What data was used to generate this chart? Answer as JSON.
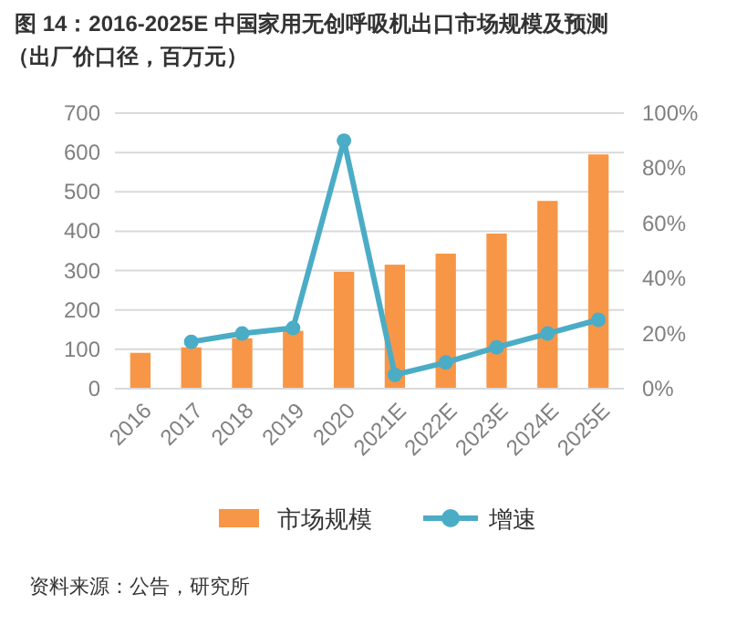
{
  "chart_data": {
    "type": "bar",
    "title": "图 14：2016-2025E 中国家用无创呼吸机出口市场规模及预测",
    "subtitle": "（出厂价口径，百万元）",
    "categories": [
      "2016",
      "2017",
      "2018",
      "2019",
      "2020",
      "2021E",
      "2022E",
      "2023E",
      "2024E",
      "2025E"
    ],
    "series": [
      {
        "name": "市场规模",
        "color": "#f79646",
        "values": [
          91,
          105,
          128,
          147,
          297,
          315,
          343,
          394,
          477,
          595
        ]
      },
      {
        "name": "增速",
        "type": "line",
        "axis": "y2",
        "color": "#4bacc6",
        "marker": "circle",
        "values": [
          null,
          17,
          20,
          22,
          90,
          5,
          9.5,
          15,
          20,
          25
        ]
      }
    ],
    "ylim": [
      0,
      700
    ],
    "yticks": [
      0,
      100,
      200,
      300,
      400,
      500,
      600,
      700
    ],
    "y2lim": [
      0,
      100
    ],
    "y2ticks": [
      {
        "value": 0,
        "label": "0%"
      },
      {
        "value": 20,
        "label": "20%"
      },
      {
        "value": 40,
        "label": "40%"
      },
      {
        "value": 60,
        "label": "60%"
      },
      {
        "value": 80,
        "label": "80%"
      },
      {
        "value": 100,
        "label": "100%"
      }
    ],
    "grid": "y",
    "legend": "bottom",
    "annotations": [
      "资料来源：公告，研究所"
    ]
  }
}
